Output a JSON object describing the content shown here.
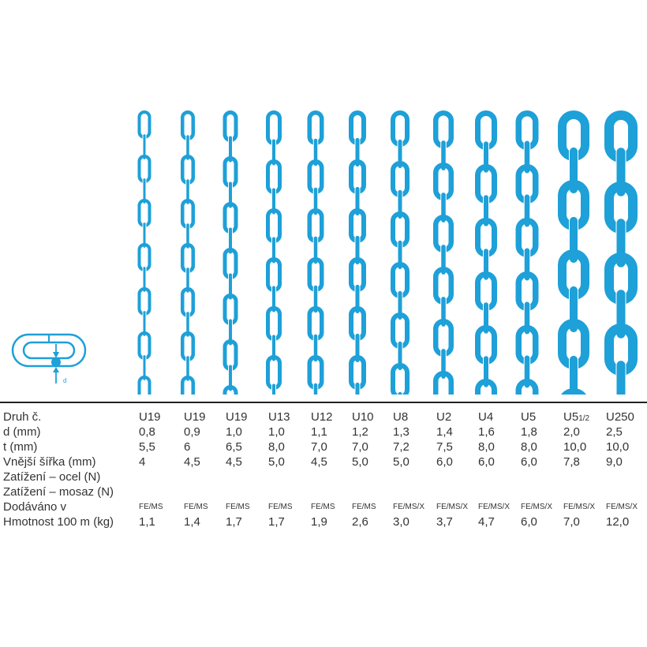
{
  "accent_color": "#1ea0d8",
  "diagram": {
    "label": "d"
  },
  "table": {
    "rows": [
      {
        "label": "Druh č.",
        "values": [
          "U19",
          "U19",
          "U19",
          "U13",
          "U12",
          "U10",
          "U8",
          "U2",
          "U4",
          "U5",
          "U5",
          "U250"
        ]
      },
      {
        "label": "d (mm)",
        "values": [
          "0,8",
          "0,9",
          "1,0",
          "1,0",
          "1,1",
          "1,2",
          "1,3",
          "1,4",
          "1,6",
          "1,8",
          "2,0",
          "2,5"
        ]
      },
      {
        "label": "t (mm)",
        "values": [
          "5,5",
          "6",
          "6,5",
          "8,0",
          "7,0",
          "7,0",
          "7,2",
          "7,5",
          "8,0",
          "8,0",
          "10,0",
          "10,0"
        ]
      },
      {
        "label": "Vnější šířka (mm)",
        "values": [
          "4",
          "4,5",
          "4,5",
          "5,0",
          "4,5",
          "5,0",
          "5,0",
          "6,0",
          "6,0",
          "6,0",
          "7,8",
          "9,0"
        ]
      },
      {
        "label": "Zatížení – ocel (N)",
        "values": []
      },
      {
        "label": "Zatížení – mosaz (N)",
        "values": []
      },
      {
        "label": "Dodáváno v",
        "values": [
          "FE/MS",
          "FE/MS",
          "FE/MS",
          "FE/MS",
          "FE/MS",
          "FE/MS",
          "FE/MS/X",
          "FE/MS/X",
          "FE/MS/X",
          "FE/MS/X",
          "FE/MS/X",
          "FE/MS/X"
        ]
      },
      {
        "label": "Hmotnost 100 m (kg)",
        "values": [
          "1,1",
          "1,4",
          "1,7",
          "1,7",
          "1,9",
          "2,6",
          "3,0",
          "3,7",
          "4,7",
          "6,0",
          "7,0",
          "12,0"
        ]
      }
    ],
    "u5_half_suffix": "1/2"
  }
}
